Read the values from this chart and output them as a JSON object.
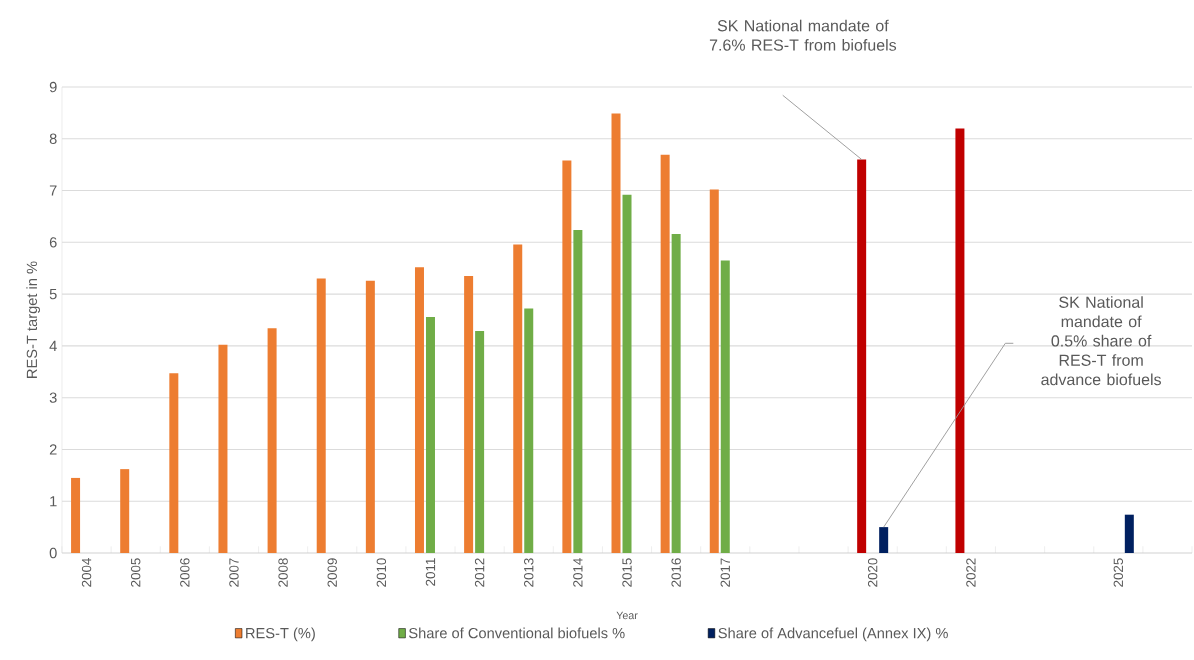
{
  "chart_data": {
    "type": "bar",
    "xlabel": "Year",
    "ylabel": "RES-T target in %",
    "categories": [
      "2004",
      "2005",
      "2006",
      "2007",
      "2008",
      "2009",
      "2010",
      "2011",
      "2012",
      "2013",
      "2014",
      "2015",
      "2016",
      "2017",
      null,
      null,
      "2020",
      null,
      "2022",
      null,
      null,
      "2025",
      null
    ],
    "series": [
      {
        "name": "RES-T (%)",
        "color": "#ed7d31",
        "colors": [
          "#ed7d31",
          "#ed7d31",
          "#ed7d31",
          "#ed7d31",
          "#ed7d31",
          "#ed7d31",
          "#ed7d31",
          "#ed7d31",
          "#ed7d31",
          "#ed7d31",
          "#ed7d31",
          "#ed7d31",
          "#ed7d31",
          "#ed7d31",
          "#ed7d31",
          "#ed7d31",
          "#c00000",
          "#ed7d31",
          "#c00000",
          "#ed7d31",
          "#ed7d31",
          "#ed7d31",
          "#ed7d31"
        ],
        "values": [
          1.45,
          1.62,
          3.47,
          4.02,
          4.34,
          5.3,
          5.26,
          5.52,
          5.35,
          5.96,
          7.58,
          8.49,
          7.69,
          7.02,
          null,
          null,
          7.6,
          null,
          8.2,
          null,
          null,
          null,
          null
        ]
      },
      {
        "name": "Share of Conventional biofuels %",
        "color": "#70ad47",
        "values": [
          null,
          null,
          null,
          null,
          null,
          null,
          null,
          4.56,
          4.29,
          4.72,
          6.24,
          6.92,
          6.16,
          5.65,
          null,
          null,
          null,
          null,
          null,
          null,
          null,
          null,
          null
        ]
      },
      {
        "name": "Share of Advancefuel (Annex IX) %",
        "color": "#002060",
        "values": [
          null,
          null,
          null,
          null,
          null,
          null,
          null,
          null,
          null,
          null,
          null,
          null,
          null,
          null,
          null,
          null,
          0.5,
          null,
          null,
          null,
          null,
          0.74,
          null
        ]
      }
    ],
    "ylim": [
      0,
      9
    ],
    "yticks": [
      0,
      1,
      2,
      3,
      4,
      5,
      6,
      7,
      8,
      9
    ],
    "grid": "y",
    "legend": "bottom",
    "annotations": [
      "SK National mandate of 7.6% RES-T from biofuels",
      "SK National mandate of 0.5% share of RES-T from advance biofuels"
    ]
  }
}
